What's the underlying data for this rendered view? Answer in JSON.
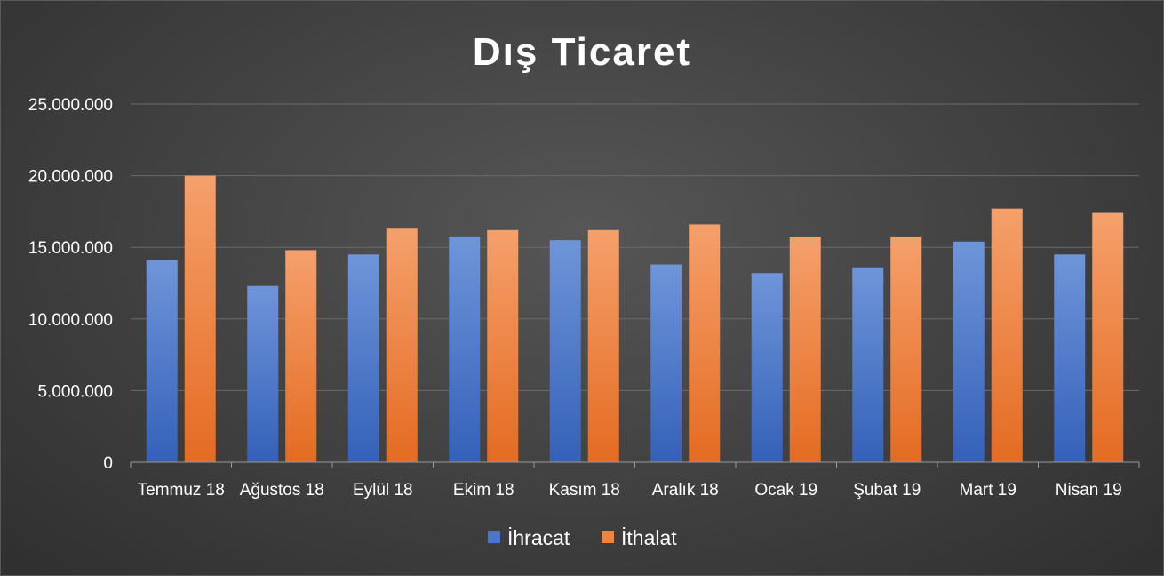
{
  "chart_data": {
    "type": "bar",
    "title": "Dış Ticaret",
    "categories": [
      "Temmuz 18",
      "Ağustos 18",
      "Eylül 18",
      "Ekim 18",
      "Kasım 18",
      "Aralık 18",
      "Ocak 19",
      "Şubat 19",
      "Mart 19",
      "Nisan 19"
    ],
    "series": [
      {
        "name": "İhracat",
        "values": [
          14100000,
          12300000,
          14500000,
          15700000,
          15500000,
          13800000,
          13200000,
          13600000,
          15400000,
          14500000
        ]
      },
      {
        "name": "İthalat",
        "values": [
          20000000,
          14800000,
          16300000,
          16200000,
          16200000,
          16600000,
          15700000,
          15700000,
          17700000,
          17400000
        ]
      }
    ],
    "ylim": [
      0,
      25000000
    ],
    "yticks": [
      0,
      5000000,
      10000000,
      15000000,
      20000000,
      25000000
    ],
    "ytick_labels": [
      "0",
      "5.000.000",
      "10.000.000",
      "15.000.000",
      "20.000.000",
      "25.000.000"
    ],
    "xlabel": "",
    "ylabel": "",
    "grid": true,
    "legend_position": "bottom",
    "colors": {
      "İhracat": "#4472c4",
      "İthalat": "#ed7d31"
    }
  }
}
